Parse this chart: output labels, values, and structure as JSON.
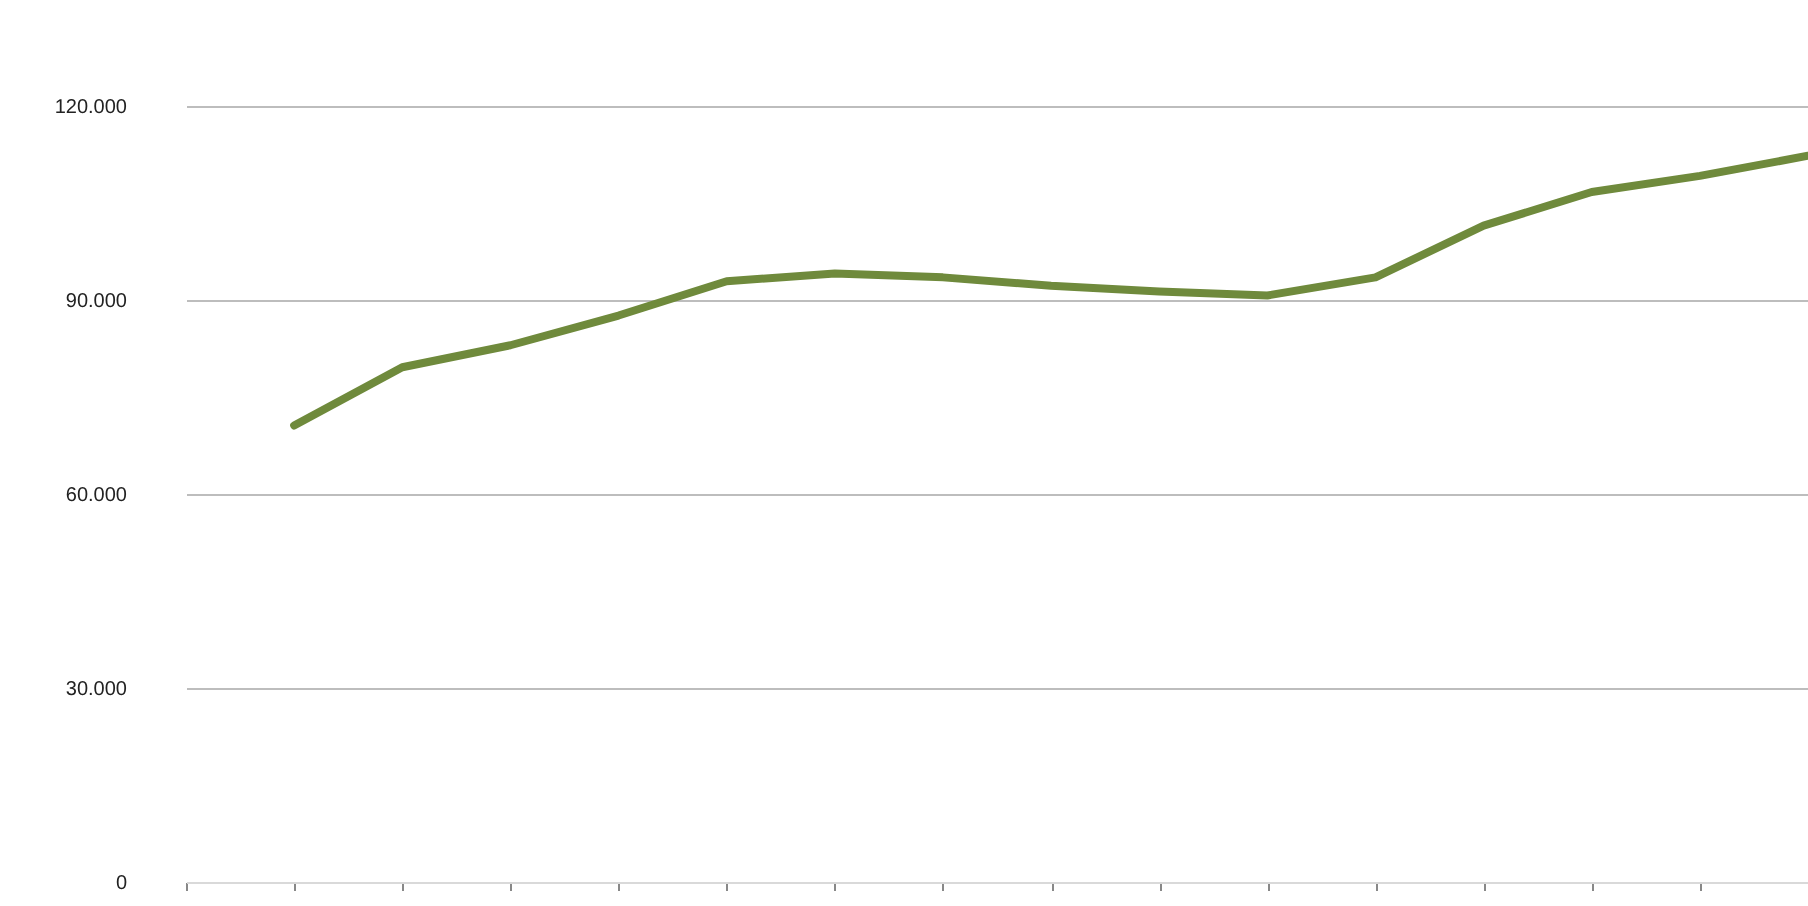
{
  "chart_data": {
    "type": "line",
    "categories": [
      null,
      null,
      null,
      null,
      null,
      null,
      null,
      null,
      null,
      null,
      null,
      null,
      null,
      null,
      null,
      null
    ],
    "series": [
      {
        "color": "#6f8a3c",
        "values": [
          null,
          70600,
          79600,
          83000,
          87600,
          92900,
          94100,
          93500,
          92200,
          91300,
          90700,
          93500,
          101500,
          106700,
          109200,
          112300
        ]
      }
    ],
    "ylim": [
      0,
      120000
    ],
    "yticks": [
      0,
      {
        "value": 30000,
        "label": "30.000"
      },
      {
        "value": 60000,
        "label": "60.000"
      },
      {
        "value": 90000,
        "label": "90.000"
      },
      {
        "value": 120000,
        "label": "120.000"
      }
    ],
    "grid": "y",
    "marker": "none",
    "line_style": "solid"
  }
}
